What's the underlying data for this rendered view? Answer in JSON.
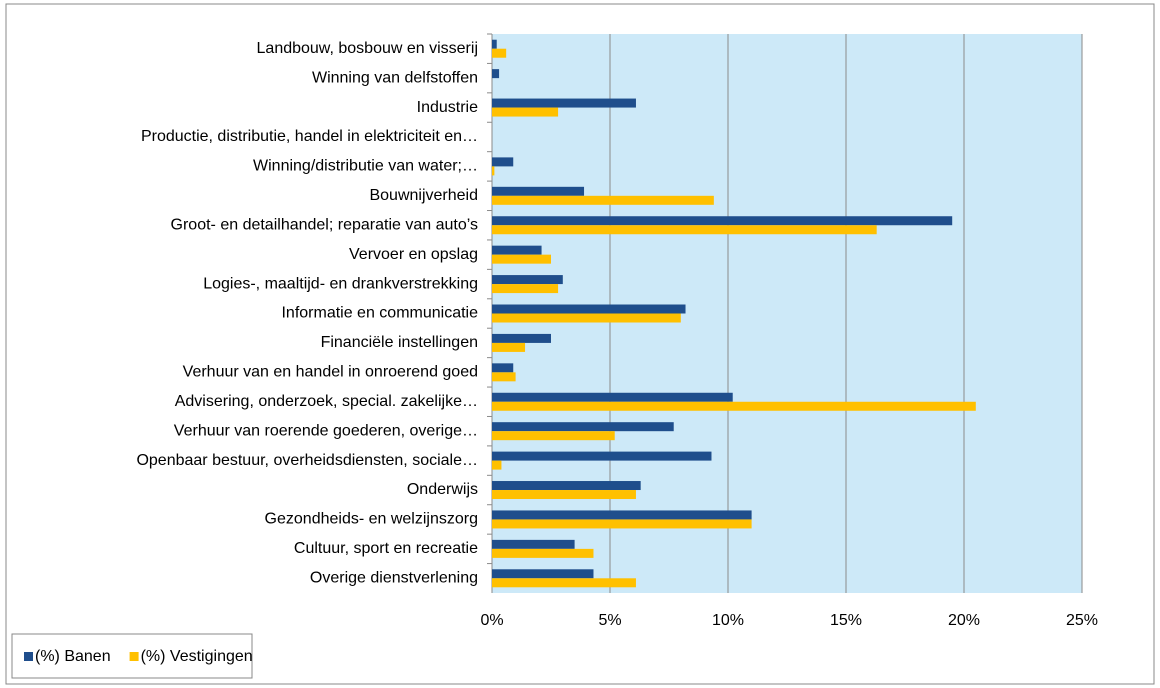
{
  "chart_data": {
    "type": "hbar",
    "categories": [
      "Landbouw, bosbouw en visserij",
      "Winning van delfstoffen",
      "Industrie",
      "Productie, distributie, handel in elektriciteit en…",
      "Winning/distributie van water;…",
      "Bouwnijverheid",
      "Groot- en detailhandel; reparatie van auto’s",
      "Vervoer en opslag",
      "Logies-, maaltijd- en drankverstrekking",
      "Informatie en communicatie",
      "Financiële instellingen",
      "Verhuur van en handel in onroerend goed",
      "Advisering, onderzoek, special. zakelijke…",
      "Verhuur van roerende goederen, overige…",
      "Openbaar bestuur, overheidsdiensten, sociale…",
      "Onderwijs",
      "Gezondheids- en welzijnszorg",
      "Cultuur, sport en recreatie",
      "Overige dienstverlening"
    ],
    "series": [
      {
        "name": "(%) Banen",
        "color": "#1f4e8c",
        "values": [
          0.2,
          0.3,
          6.1,
          0,
          0.9,
          3.9,
          19.5,
          2.1,
          3.0,
          8.2,
          2.5,
          0.9,
          10.2,
          7.7,
          9.3,
          6.3,
          11.0,
          3.5,
          4.3
        ]
      },
      {
        "name": "(%) Vestigingen",
        "color": "#ffc000",
        "values": [
          0.6,
          0,
          2.8,
          0,
          0.1,
          9.4,
          16.3,
          2.5,
          2.8,
          8.0,
          1.4,
          1.0,
          20.5,
          5.2,
          0.4,
          6.1,
          11.0,
          4.3,
          6.1
        ]
      }
    ],
    "xlim": [
      0,
      25
    ],
    "xticks": [
      {
        "value": 0,
        "label": "0%"
      },
      {
        "value": 5,
        "label": "5%"
      },
      {
        "value": 10,
        "label": "10%"
      },
      {
        "value": 15,
        "label": "15%"
      },
      {
        "value": 20,
        "label": "20%"
      },
      {
        "value": 25,
        "label": "25%"
      }
    ],
    "grid": true,
    "legend": "bottom-left",
    "background": "#cde9f8"
  }
}
